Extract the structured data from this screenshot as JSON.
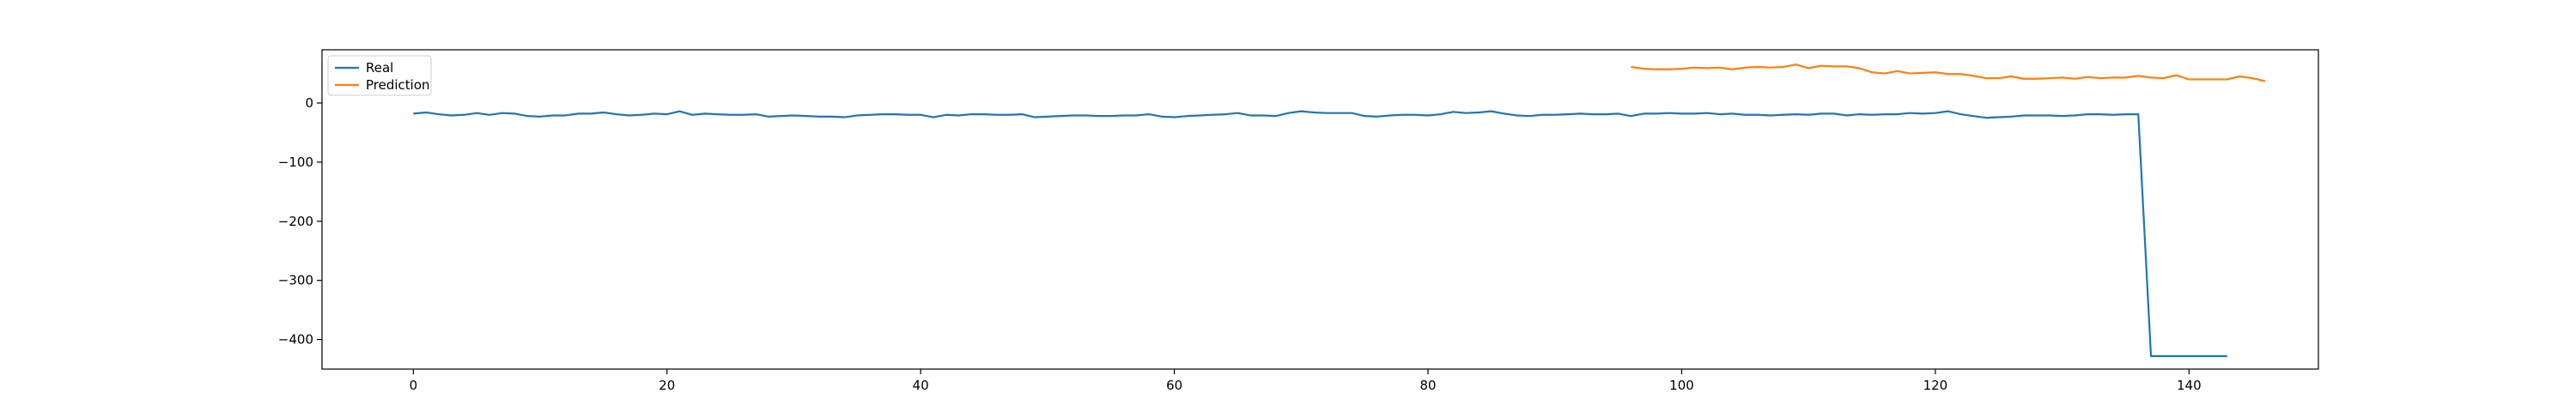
{
  "chart_data": {
    "type": "line",
    "title": "",
    "xlabel": "",
    "ylabel": "",
    "xlim": [
      -7.2,
      150.2
    ],
    "ylim": [
      -450,
      90
    ],
    "xticks": [
      0,
      20,
      40,
      60,
      80,
      100,
      120,
      140
    ],
    "yticks": [
      0,
      -100,
      -200,
      -300,
      -400
    ],
    "grid": false,
    "legend": "top-left",
    "series": [
      {
        "name": "Real",
        "color": "#1f77b4",
        "x_start": 0,
        "values": [
          -18,
          -16,
          -19,
          -21,
          -20,
          -17,
          -20,
          -17,
          -18,
          -22,
          -23,
          -21,
          -21,
          -18,
          -18,
          -16,
          -19,
          -21,
          -20,
          -18,
          -19,
          -14,
          -20,
          -18,
          -19,
          -20,
          -20,
          -19,
          -23,
          -22,
          -21,
          -22,
          -23,
          -23,
          -24,
          -21,
          -20,
          -19,
          -19,
          -20,
          -20,
          -24,
          -20,
          -21,
          -19,
          -19,
          -20,
          -20,
          -19,
          -24,
          -23,
          -22,
          -21,
          -21,
          -22,
          -22,
          -21,
          -21,
          -19,
          -23,
          -24,
          -22,
          -21,
          -20,
          -19,
          -17,
          -21,
          -21,
          -22,
          -17,
          -14,
          -16,
          -17,
          -17,
          -17,
          -22,
          -23,
          -21,
          -20,
          -20,
          -21,
          -19,
          -15,
          -17,
          -16,
          -14,
          -18,
          -21,
          -22,
          -20,
          -20,
          -19,
          -18,
          -19,
          -19,
          -18,
          -22,
          -18,
          -18,
          -17,
          -18,
          -18,
          -17,
          -19,
          -18,
          -20,
          -20,
          -21,
          -20,
          -19,
          -20,
          -18,
          -18,
          -21,
          -19,
          -20,
          -19,
          -19,
          -17,
          -18,
          -17,
          -14,
          -19,
          -22,
          -25,
          -24,
          -23,
          -21,
          -21,
          -21,
          -22,
          -21,
          -19,
          -19,
          -20,
          -19,
          -19,
          -428,
          -428,
          -428,
          -428,
          -428,
          -428,
          -428
        ]
      },
      {
        "name": "Prediction",
        "color": "#ff7f0e",
        "x_start": 96,
        "values": [
          61,
          58,
          57,
          57,
          58,
          60,
          59,
          60,
          57,
          60,
          61,
          60,
          61,
          65,
          59,
          63,
          62,
          62,
          59,
          52,
          50,
          54,
          50,
          51,
          52,
          49,
          49,
          46,
          42,
          42,
          45,
          41,
          41,
          42,
          43,
          41,
          44,
          42,
          43,
          43,
          46,
          43,
          42,
          47,
          40,
          40,
          40,
          40,
          45,
          42,
          37
        ]
      }
    ]
  }
}
